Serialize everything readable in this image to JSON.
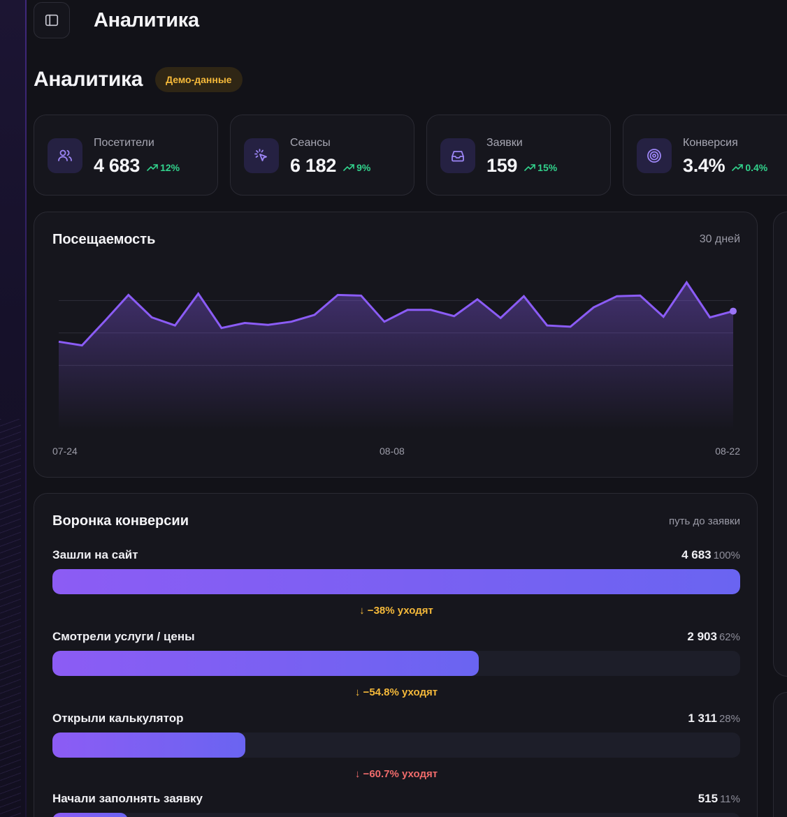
{
  "topbar": {
    "title": "Аналитика",
    "sidebar_toggle_icon": "sidebar-toggle-icon"
  },
  "header": {
    "title": "Аналитика",
    "badge": "Демо-данные"
  },
  "stats": [
    {
      "label": "Посетители",
      "value": "4 683",
      "delta": "12%",
      "icon": "users-icon"
    },
    {
      "label": "Сеансы",
      "value": "6 182",
      "delta": "9%",
      "icon": "cursor-click-icon"
    },
    {
      "label": "Заявки",
      "value": "159",
      "delta": "15%",
      "icon": "inbox-icon"
    },
    {
      "label": "Конверсия",
      "value": "3.4%",
      "delta": "0.4%",
      "icon": "target-icon"
    }
  ],
  "colors": {
    "accent": "#8b5cf6",
    "positive": "#32d28c",
    "warning": "#f5b93a",
    "danger": "#f06b6b"
  },
  "traffic": {
    "title": "Посещаемость",
    "period": "30 дней",
    "x_labels": [
      "07-24",
      "08-08",
      "08-22"
    ]
  },
  "chart_data": {
    "type": "area",
    "x": [
      "07-24",
      "07-25",
      "07-26",
      "07-27",
      "07-28",
      "07-29",
      "07-30",
      "07-31",
      "08-01",
      "08-02",
      "08-03",
      "08-04",
      "08-05",
      "08-06",
      "08-07",
      "08-08",
      "08-09",
      "08-10",
      "08-11",
      "08-12",
      "08-13",
      "08-14",
      "08-15",
      "08-16",
      "08-17",
      "08-18",
      "08-19",
      "08-20",
      "08-21",
      "08-22"
    ],
    "series": [
      {
        "values": [
          142,
          136,
          176,
          217,
          181,
          168,
          219,
          164,
          172,
          169,
          174,
          185,
          217,
          216,
          174,
          193,
          193,
          183,
          210,
          180,
          215,
          168,
          166,
          197,
          215,
          216,
          182,
          237,
          181,
          191
        ]
      }
    ],
    "ylim": [
      0,
      260
    ],
    "grid": true,
    "xticks": [
      "07-24",
      "08-08",
      "08-22"
    ]
  },
  "funnel": {
    "title": "Воронка конверсии",
    "subtitle": "путь до заявки",
    "steps": [
      {
        "name": "Зашли на сайт",
        "count": "4 683",
        "percent": "100%",
        "fraction": 1.0
      },
      {
        "name": "Смотрели услуги / цены",
        "count": "2 903",
        "percent": "62%",
        "fraction": 0.62
      },
      {
        "name": "Открыли калькулятор",
        "count": "1 311",
        "percent": "28%",
        "fraction": 0.28
      },
      {
        "name": "Начали заполнять заявку",
        "count": "515",
        "percent": "11%",
        "fraction": 0.11
      }
    ],
    "drops": [
      {
        "text": "↓ −38% уходят",
        "level": "warning"
      },
      {
        "text": "↓ −54.8% уходят",
        "level": "warning"
      },
      {
        "text": "↓ −60.7% уходят",
        "level": "danger"
      }
    ]
  }
}
